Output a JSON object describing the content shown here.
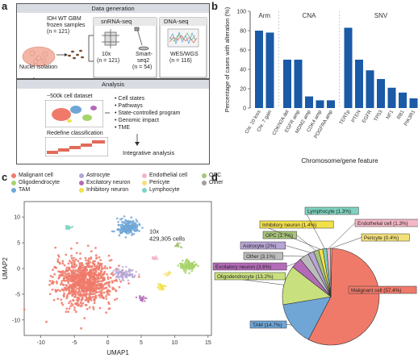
{
  "panels": {
    "a": "a",
    "b": "b",
    "c": "c",
    "d": "d"
  },
  "panel_a": {
    "data_generation_title": "Data generation",
    "sample_title": "IDH WT GBM",
    "sample_sub": "frozen samples",
    "sample_n": "(n = 121)",
    "nuclei_label": "Nuclei isolation",
    "snrna_header": "snRNA-seq",
    "dna_header": "DNA-seq",
    "tenx_label": "10x",
    "tenx_n": "(n = 121)",
    "smart_label": "Smart-",
    "smart_label2": "seq2",
    "smart_n": "(n = 54)",
    "wes_label": "WES/WGS",
    "wes_n": "(n = 116)",
    "analysis_title": "Analysis",
    "dataset_label": "~500k cell dataset",
    "redefine_label": "Redefine classification",
    "bullets": [
      "Cell states",
      "Pathways",
      "State-controlled program",
      "Genomic impact",
      "TME"
    ],
    "integrative_label": "Integrative analysis"
  },
  "chart_b": {
    "ylabel": "Percentage of cases with alteration (%)",
    "xlabel": "Chromosome/gene feature",
    "group_labels": [
      "Arm",
      "CNA",
      "SNV"
    ],
    "yticks": [
      "0",
      "20",
      "40",
      "60",
      "80",
      "100"
    ]
  },
  "chart_c": {
    "xlabel": "UMAP1",
    "ylabel": "UMAP2",
    "xticks": [
      "-10",
      "-5",
      "0",
      "5",
      "10",
      "15"
    ],
    "yticks": [
      "-10",
      "-5",
      "0",
      "5",
      "10"
    ],
    "annotation_line1": "10x",
    "annotation_line2": "429,305 cells"
  },
  "legend_c": [
    {
      "label": "Malignant cell",
      "color": "#f07a6a"
    },
    {
      "label": "Oligodendrocyte",
      "color": "#a8d36c"
    },
    {
      "label": "TAM",
      "color": "#6fa6d6"
    },
    {
      "label": "Astrocyte",
      "color": "#b6a4d4"
    },
    {
      "label": "Excitatory neuron",
      "color": "#b46ab8"
    },
    {
      "label": "Inhibitory neuron",
      "color": "#f2e04a"
    },
    {
      "label": "Endothelial cell",
      "color": "#f4b6c6"
    },
    {
      "label": "Pericyte",
      "color": "#f4e07a"
    },
    {
      "label": "Lymphocyte",
      "color": "#7ed3c0"
    },
    {
      "label": "OPC",
      "color": "#a8c47a"
    },
    {
      "label": "Other",
      "color": "#9e9e9e"
    }
  ],
  "chart_data": [
    {
      "type": "bar",
      "categories": [
        "Chr. 10 loss",
        "Chr. 7 gain",
        "CDKN2A del",
        "EGFR amp",
        "MDM2 amp",
        "CDK4 amp",
        "PDGFRA amp",
        "TERTp",
        "PTEN",
        "EGFR",
        "TP53",
        "NF1",
        "RB1",
        "PIK3R1"
      ],
      "groups": [
        {
          "name": "Arm",
          "categories": [
            "Chr. 10 loss",
            "Chr. 7 gain"
          ]
        },
        {
          "name": "CNA",
          "categories": [
            "CDKN2A del",
            "EGFR amp",
            "MDM2 amp",
            "CDK4 amp",
            "PDGFRA amp"
          ]
        },
        {
          "name": "SNV",
          "categories": [
            "TERTp",
            "PTEN",
            "EGFR",
            "TP53",
            "NF1",
            "RB1",
            "PIK3R1"
          ]
        }
      ],
      "values": [
        80,
        78,
        50,
        50,
        12,
        8,
        8,
        83,
        50,
        39,
        30,
        21,
        16,
        10
      ],
      "bar_color": "#1a5aa6",
      "ylabel": "Percentage of cases with alteration (%)",
      "xlabel": "Chromosome/gene feature",
      "ylim": [
        0,
        100
      ]
    },
    {
      "type": "pie",
      "labels": [
        "Malignant cell (57.4%)",
        "TAM (14.7%)",
        "Oligodendrocyte (13.2%)",
        "Excitatory neuron (3.6%)",
        "Other (3.1%)",
        "Astrocyte (2%)",
        "OPC (1.7%)",
        "Inhibitory neuron (1.4%)",
        "Lymphocyte (1.3%)",
        "Endothelial cell (1.3%)",
        "Pericyte (0.4%)"
      ],
      "values": [
        57.4,
        14.7,
        13.2,
        3.6,
        3.1,
        2.0,
        1.7,
        1.4,
        1.3,
        1.3,
        0.4
      ],
      "colors": [
        "#f07a6a",
        "#6fa6d6",
        "#c9e07e",
        "#b46ab8",
        "#bdbdbd",
        "#b6a4d4",
        "#a8c47a",
        "#f2e04a",
        "#7ed3c0",
        "#f4b6c6",
        "#f4e07a"
      ]
    }
  ]
}
